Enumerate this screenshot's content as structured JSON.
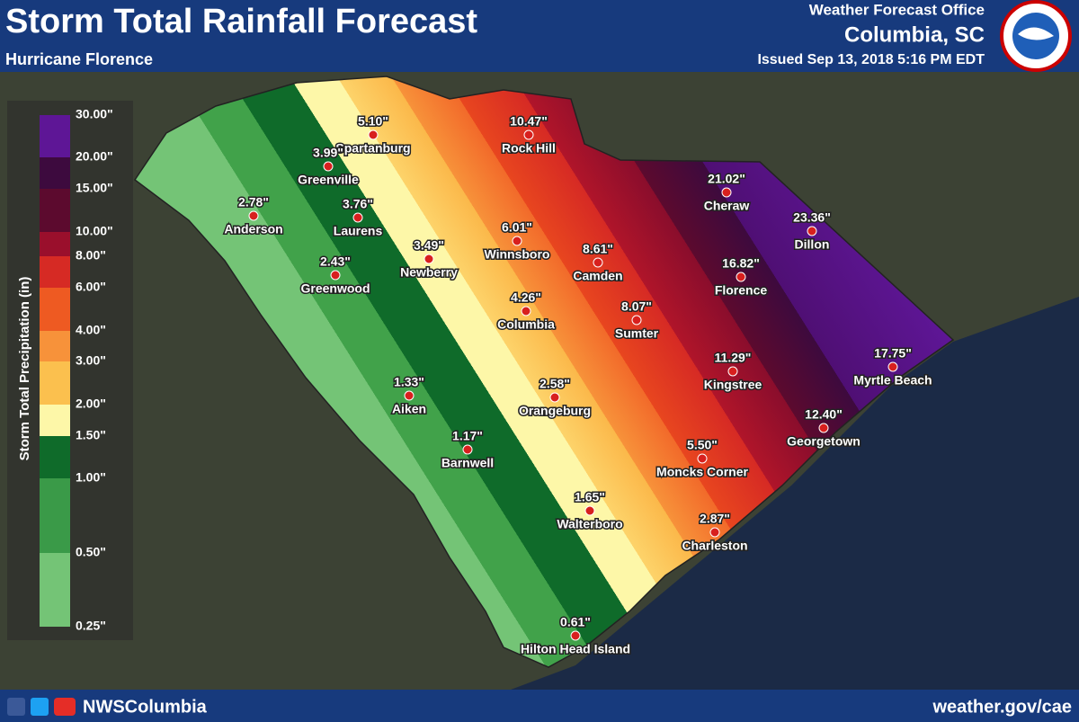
{
  "header": {
    "title": "Storm Total Rainfall Forecast",
    "subtitle": "Hurricane Florence",
    "office": "Weather Forecast Office",
    "city": "Columbia, SC",
    "issued": "Issued Sep 13, 2018 5:16 PM EDT"
  },
  "legend": {
    "title": "Storm Total Precipitation (in)",
    "labels": [
      "30.00\"",
      "20.00\"",
      "15.00\"",
      "10.00\"",
      "8.00\"",
      "6.00\"",
      "4.00\"",
      "3.00\"",
      "2.00\"",
      "1.50\"",
      "1.00\"",
      "0.50\"",
      "0.25\""
    ]
  },
  "cities": [
    {
      "name": "Spartanburg",
      "amount": "5.10\""
    },
    {
      "name": "Greenville",
      "amount": "3.99\""
    },
    {
      "name": "Anderson",
      "amount": "2.78\""
    },
    {
      "name": "Laurens",
      "amount": "3.76\""
    },
    {
      "name": "Rock Hill",
      "amount": "10.47\""
    },
    {
      "name": "Cheraw",
      "amount": "21.02\""
    },
    {
      "name": "Dillon",
      "amount": "23.36\""
    },
    {
      "name": "Winnsboro",
      "amount": "6.01\""
    },
    {
      "name": "Newberry",
      "amount": "3.49\""
    },
    {
      "name": "Greenwood",
      "amount": "2.43\""
    },
    {
      "name": "Camden",
      "amount": "8.61\""
    },
    {
      "name": "Florence",
      "amount": "16.82\""
    },
    {
      "name": "Columbia",
      "amount": "4.26\""
    },
    {
      "name": "Sumter",
      "amount": "8.07\""
    },
    {
      "name": "Myrtle Beach",
      "amount": "17.75\""
    },
    {
      "name": "Kingstree",
      "amount": "11.29\""
    },
    {
      "name": "Aiken",
      "amount": "1.33\""
    },
    {
      "name": "Orangeburg",
      "amount": "2.58\""
    },
    {
      "name": "Georgetown",
      "amount": "12.40\""
    },
    {
      "name": "Barnwell",
      "amount": "1.17\""
    },
    {
      "name": "Moncks Corner",
      "amount": "5.50\""
    },
    {
      "name": "Walterboro",
      "amount": "1.65\""
    },
    {
      "name": "Charleston",
      "amount": "2.87\""
    },
    {
      "name": "Hilton Head Island",
      "amount": "0.61\""
    }
  ],
  "footer": {
    "social": "NWSColumbia",
    "url": "weather.gov/cae"
  }
}
